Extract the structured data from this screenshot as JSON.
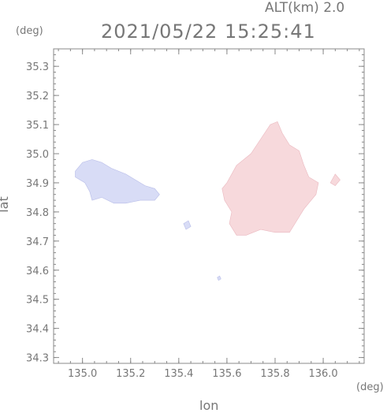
{
  "header": {
    "alt_label": "ALT(km)  2.0",
    "timestamp": "2021/05/22 15:25:41"
  },
  "units": {
    "y_unit": "(deg)",
    "x_unit": "(deg)"
  },
  "colors": {
    "axis": "#888888",
    "negative": "#d8dcf6",
    "positive": "#f7d9dc"
  },
  "chart_data": {
    "type": "heatmap",
    "title": "2021/05/22 15:25:41",
    "subtitle": "ALT(km)  2.0",
    "xlabel": "lon",
    "ylabel": "lat",
    "xlim": [
      134.88,
      136.17
    ],
    "ylim": [
      34.28,
      35.36
    ],
    "x_ticks": [
      135.0,
      135.2,
      135.4,
      135.6,
      135.8,
      136.0
    ],
    "x_tick_labels": [
      "135.0",
      "135.2",
      "135.4",
      "135.6",
      "135.8",
      "136.0"
    ],
    "y_ticks": [
      34.3,
      34.4,
      34.5,
      34.6,
      34.7,
      34.8,
      34.9,
      35.0,
      35.1,
      35.2,
      35.3
    ],
    "y_tick_labels": [
      "34.3",
      "34.4",
      "34.5",
      "34.6",
      "34.7",
      "34.8",
      "34.9",
      "35.0",
      "35.1",
      "35.2",
      "35.3"
    ],
    "regions": [
      {
        "name": "negative-echo-west",
        "sign": "negative",
        "polygon": [
          [
            134.97,
            34.94
          ],
          [
            135.0,
            34.97
          ],
          [
            135.04,
            34.98
          ],
          [
            135.08,
            34.97
          ],
          [
            135.12,
            34.95
          ],
          [
            135.18,
            34.93
          ],
          [
            135.22,
            34.91
          ],
          [
            135.26,
            34.89
          ],
          [
            135.3,
            34.88
          ],
          [
            135.32,
            34.86
          ],
          [
            135.3,
            34.84
          ],
          [
            135.24,
            34.84
          ],
          [
            135.18,
            34.83
          ],
          [
            135.13,
            34.83
          ],
          [
            135.08,
            34.85
          ],
          [
            135.04,
            34.84
          ],
          [
            135.03,
            34.87
          ],
          [
            135.01,
            34.9
          ],
          [
            134.97,
            34.92
          ]
        ]
      },
      {
        "name": "positive-echo-east",
        "sign": "positive",
        "polygon": [
          [
            135.6,
            34.9
          ],
          [
            135.64,
            34.96
          ],
          [
            135.7,
            35.0
          ],
          [
            135.74,
            35.05
          ],
          [
            135.78,
            35.1
          ],
          [
            135.81,
            35.11
          ],
          [
            135.83,
            35.07
          ],
          [
            135.86,
            35.03
          ],
          [
            135.9,
            35.01
          ],
          [
            135.92,
            34.96
          ],
          [
            135.94,
            34.92
          ],
          [
            135.98,
            34.9
          ],
          [
            135.97,
            34.86
          ],
          [
            135.92,
            34.81
          ],
          [
            135.89,
            34.77
          ],
          [
            135.86,
            34.73
          ],
          [
            135.8,
            34.73
          ],
          [
            135.74,
            34.74
          ],
          [
            135.68,
            34.72
          ],
          [
            135.64,
            34.72
          ],
          [
            135.61,
            34.76
          ],
          [
            135.62,
            34.8
          ],
          [
            135.59,
            34.84
          ],
          [
            135.58,
            34.88
          ]
        ]
      },
      {
        "name": "positive-speck-1",
        "sign": "positive",
        "polygon": [
          [
            136.03,
            34.9
          ],
          [
            136.05,
            34.93
          ],
          [
            136.07,
            34.91
          ],
          [
            136.05,
            34.89
          ]
        ]
      },
      {
        "name": "negative-speck-1",
        "sign": "negative",
        "polygon": [
          [
            135.42,
            34.76
          ],
          [
            135.44,
            34.77
          ],
          [
            135.45,
            34.75
          ],
          [
            135.43,
            34.74
          ]
        ]
      },
      {
        "name": "negative-speck-2",
        "sign": "negative",
        "polygon": [
          [
            135.56,
            34.575
          ],
          [
            135.57,
            34.58
          ],
          [
            135.575,
            34.57
          ],
          [
            135.565,
            34.565
          ]
        ]
      }
    ]
  }
}
